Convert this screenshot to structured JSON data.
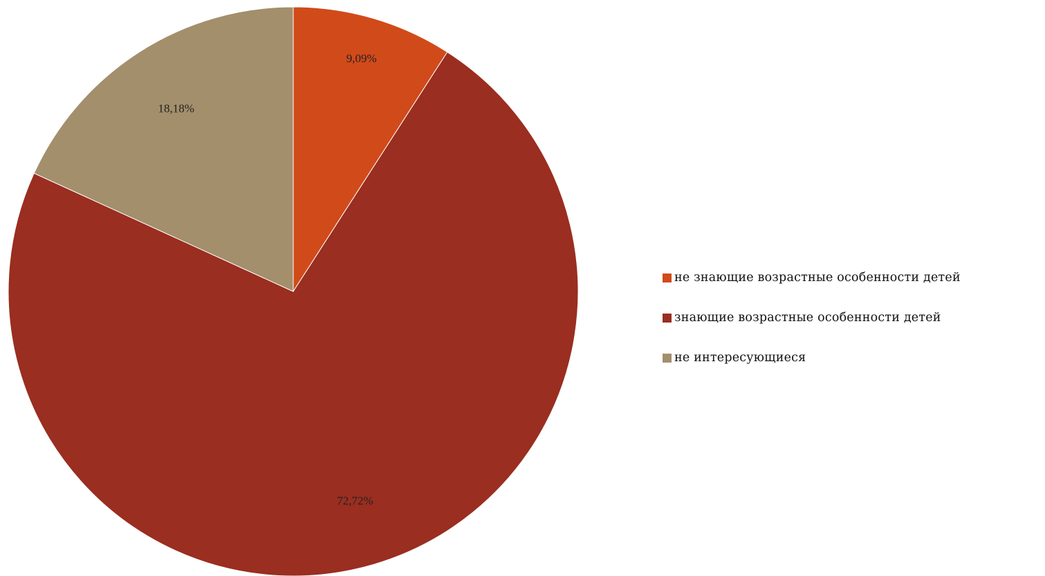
{
  "chart_data": {
    "type": "pie",
    "title": "",
    "categories": [
      "не знающие возрастные особенности детей",
      "знающие возрастные особенности детей",
      "не интересующиеся"
    ],
    "values": [
      9.09,
      72.72,
      18.18
    ],
    "value_labels": [
      "9,09%",
      "72,72%",
      "18,18%"
    ],
    "colors": [
      "#D14A1A",
      "#9A2E20",
      "#A38F6C"
    ],
    "start_angle_deg": 0,
    "direction": "clockwise",
    "legend_position": "right"
  }
}
